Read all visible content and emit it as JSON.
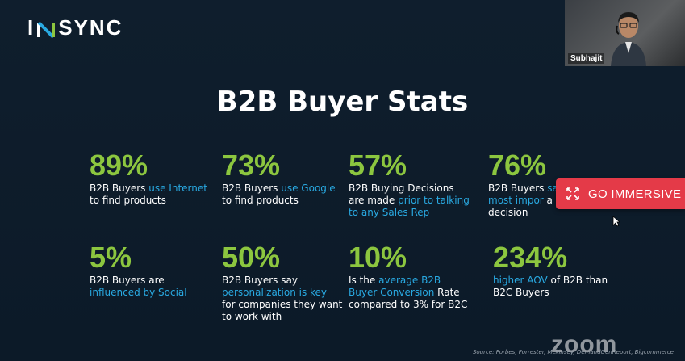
{
  "logo": {
    "left": "I",
    "right": "SYNC"
  },
  "slide": {
    "title": "B2B Buyer Stats",
    "stats": [
      {
        "num": "89%",
        "parts": [
          [
            "B2B Buyers ",
            false
          ],
          [
            "use Internet",
            true
          ],
          [
            " to find products",
            false
          ]
        ]
      },
      {
        "num": "73%",
        "parts": [
          [
            "B2B Buyers ",
            false
          ],
          [
            "use Google",
            true
          ],
          [
            " to find products",
            false
          ]
        ]
      },
      {
        "num": "57%",
        "parts": [
          [
            "B2B Buying Decisions are made ",
            false
          ],
          [
            "prior to talking to any Sales Rep",
            true
          ]
        ]
      },
      {
        "num": "76%",
        "parts": [
          [
            "B2B Buyers ",
            false
          ],
          [
            "say the most impor",
            true
          ],
          [
            " a buying decision",
            false
          ]
        ]
      },
      {
        "num": "5%",
        "parts": [
          [
            "B2B Buyers are ",
            false
          ],
          [
            "influenced by Social",
            true
          ]
        ]
      },
      {
        "num": "50%",
        "parts": [
          [
            "B2B Buyers say ",
            false
          ],
          [
            "personalization is key",
            true
          ],
          [
            " for companies they want to work with",
            false
          ]
        ]
      },
      {
        "num": "10%",
        "parts": [
          [
            "Is the ",
            false
          ],
          [
            "average B2B Buyer Conversion",
            true
          ],
          [
            " Rate compared to 3% for B2C",
            false
          ]
        ]
      },
      {
        "num": "234%",
        "parts": [
          [
            "higher AOV",
            true
          ],
          [
            " of B2B than B2C Buyers",
            false
          ]
        ]
      }
    ],
    "source": "Source: Forbes, Forrester, Mckinsey, DemandGenReport, Bigcommerce"
  },
  "video": {
    "name": "Subhajit"
  },
  "immersive_button": {
    "label": "GO IMMERSIVE"
  },
  "zoom_watermark": "zoom",
  "colors": {
    "stat_green": "#8cc63f",
    "highlight_blue": "#29a9e1",
    "immersive_red": "#e43a48"
  }
}
